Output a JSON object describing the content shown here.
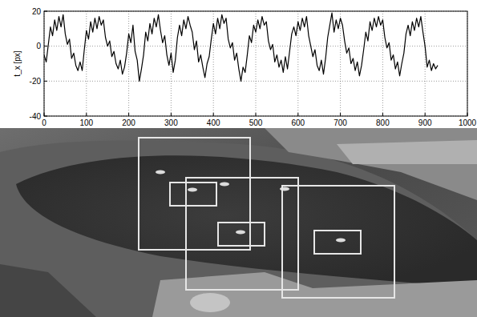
{
  "chart_data": {
    "type": "line",
    "y_label": "t_x [px]",
    "color": "#000000",
    "grid": true,
    "line_style": "solid",
    "xlim": [
      0,
      1000
    ],
    "ylim": [
      -40,
      20
    ],
    "xticks": [
      0,
      100,
      200,
      300,
      400,
      500,
      600,
      700,
      800,
      900,
      1000
    ],
    "yticks": [
      -40,
      -20,
      0,
      20
    ],
    "x": [
      0,
      5,
      10,
      15,
      20,
      25,
      30,
      35,
      40,
      45,
      50,
      55,
      60,
      65,
      70,
      75,
      80,
      85,
      90,
      95,
      100,
      105,
      110,
      115,
      120,
      125,
      130,
      135,
      140,
      145,
      150,
      155,
      160,
      165,
      170,
      175,
      180,
      185,
      190,
      195,
      200,
      205,
      210,
      215,
      220,
      225,
      230,
      235,
      240,
      245,
      250,
      255,
      260,
      265,
      270,
      275,
      280,
      285,
      290,
      295,
      300,
      305,
      310,
      315,
      320,
      325,
      330,
      335,
      340,
      345,
      350,
      355,
      360,
      365,
      370,
      375,
      380,
      385,
      390,
      395,
      400,
      405,
      410,
      415,
      420,
      425,
      430,
      435,
      440,
      445,
      450,
      455,
      460,
      465,
      470,
      475,
      480,
      485,
      490,
      495,
      500,
      505,
      510,
      515,
      520,
      525,
      530,
      535,
      540,
      545,
      550,
      555,
      560,
      565,
      570,
      575,
      580,
      585,
      590,
      595,
      600,
      605,
      610,
      615,
      620,
      625,
      630,
      635,
      640,
      645,
      650,
      655,
      660,
      665,
      670,
      675,
      680,
      685,
      690,
      695,
      700,
      705,
      710,
      715,
      720,
      725,
      730,
      735,
      740,
      745,
      750,
      755,
      760,
      765,
      770,
      775,
      780,
      785,
      790,
      795,
      800,
      805,
      810,
      815,
      820,
      825,
      830,
      835,
      840,
      845,
      850,
      855,
      860,
      865,
      870,
      875,
      880,
      885,
      890,
      895,
      900,
      905,
      910,
      915,
      920,
      925,
      930
    ],
    "values": [
      -5,
      -9,
      1,
      11,
      6,
      15,
      9,
      17,
      11,
      18,
      7,
      1,
      4,
      -7,
      -4,
      -11,
      -14,
      -9,
      -14,
      -2,
      9,
      4,
      14,
      8,
      16,
      10,
      17,
      12,
      15,
      5,
      0,
      3,
      -6,
      -3,
      -10,
      -13,
      -8,
      -16,
      -12,
      -4,
      7,
      2,
      12,
      -3,
      -8,
      -20,
      -13,
      -5,
      8,
      3,
      13,
      7,
      16,
      11,
      18,
      9,
      2,
      6,
      -5,
      -11,
      -4,
      -15,
      -8,
      5,
      12,
      6,
      15,
      10,
      17,
      12,
      8,
      -2,
      3,
      -9,
      -5,
      -12,
      -18,
      -10,
      -6,
      4,
      13,
      7,
      16,
      10,
      18,
      13,
      16,
      4,
      -1,
      2,
      -8,
      -4,
      -13,
      -20,
      -12,
      -15,
      -5,
      6,
      2,
      12,
      8,
      15,
      10,
      17,
      12,
      14,
      3,
      -2,
      1,
      -9,
      -5,
      -12,
      -8,
      -15,
      -6,
      -13,
      -3,
      7,
      11,
      6,
      14,
      9,
      16,
      11,
      17,
      6,
      0,
      -6,
      -2,
      -11,
      -14,
      -8,
      -16,
      -7,
      5,
      12,
      19,
      8,
      15,
      10,
      16,
      12,
      3,
      -4,
      -1,
      -10,
      -7,
      -14,
      -9,
      -17,
      -11,
      -2,
      8,
      3,
      14,
      9,
      16,
      11,
      17,
      12,
      15,
      5,
      -1,
      2,
      -8,
      -5,
      -13,
      -9,
      -17,
      -10,
      -4,
      7,
      12,
      6,
      14,
      9,
      16,
      11,
      17,
      8,
      0,
      -12,
      -8,
      -14,
      -10,
      -13,
      -11
    ]
  }
}
